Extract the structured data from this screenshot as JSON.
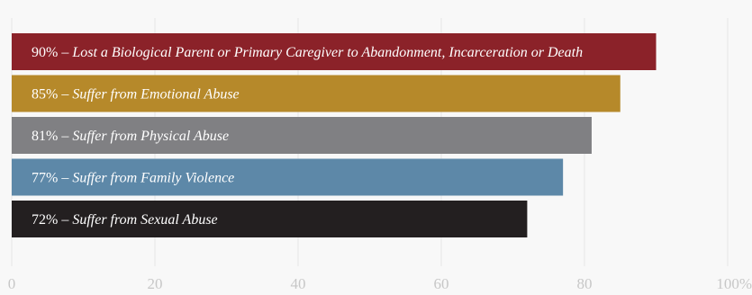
{
  "chart_data": {
    "type": "bar",
    "orientation": "horizontal",
    "title": "",
    "xlabel": "",
    "ylabel": "",
    "xlim": [
      0,
      100
    ],
    "grid": true,
    "legend": "none",
    "x_ticks": [
      "0",
      "20",
      "40",
      "60",
      "80",
      "100%"
    ],
    "categories": [
      "Lost a Biological Parent or Primary Caregiver to Abandonment, Incarceration or Death",
      "Suffer from Emotional Abuse",
      "Suffer from Physical Abuse",
      "Suffer from Family Violence",
      "Suffer from Sexual Abuse"
    ],
    "values": [
      90,
      85,
      81,
      77,
      72
    ],
    "value_labels": [
      "90%",
      "85%",
      "81%",
      "77%",
      "72%"
    ],
    "separator": " – ",
    "colors": [
      "#8b2229",
      "#b6892a",
      "#808083",
      "#5d88a8",
      "#231f20"
    ]
  }
}
